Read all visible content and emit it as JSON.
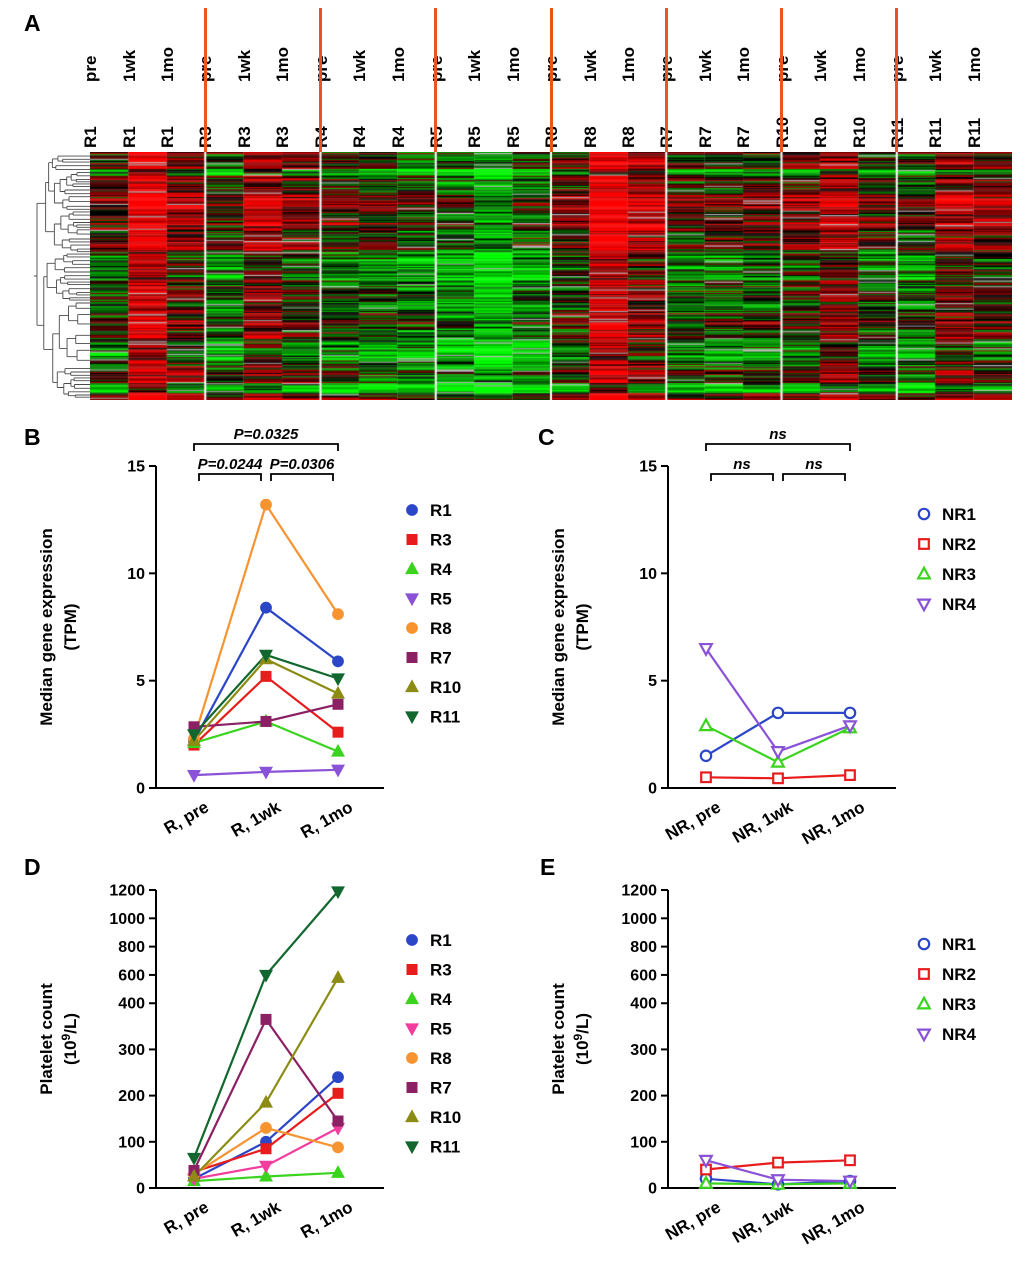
{
  "panels": {
    "a": "A",
    "b": "B",
    "c": "C",
    "d": "D",
    "e": "E"
  },
  "chart_data": [
    {
      "type": "heatmap",
      "panel": "A",
      "description": "Hierarchically clustered gene-expression heatmap (red=up, green=down, black=neutral, grey=missing) for responders R1,R3,R4,R5,R8,R7,R10,R11 at pre, 1wk, 1mo",
      "separator_color": "#e8561c",
      "up_color": "#ff0000",
      "down_color": "#00e400",
      "neutral_color": "#000000",
      "missing_color": "#9a9a9a",
      "columns": [
        {
          "sample": "R1",
          "timepoint": "pre",
          "bias": -0.12
        },
        {
          "sample": "R1",
          "timepoint": "1wk",
          "bias": 0.92
        },
        {
          "sample": "R1",
          "timepoint": "1mo",
          "bias": 0.25
        },
        {
          "sample": "R3",
          "timepoint": "pre",
          "bias": -0.25
        },
        {
          "sample": "R3",
          "timepoint": "1wk",
          "bias": 0.38
        },
        {
          "sample": "R3",
          "timepoint": "1mo",
          "bias": 0.05
        },
        {
          "sample": "R4",
          "timepoint": "pre",
          "bias": -0.18
        },
        {
          "sample": "R4",
          "timepoint": "1wk",
          "bias": -0.25
        },
        {
          "sample": "R4",
          "timepoint": "1mo",
          "bias": -0.38
        },
        {
          "sample": "R5",
          "timepoint": "pre",
          "bias": -0.5
        },
        {
          "sample": "R5",
          "timepoint": "1wk",
          "bias": -0.85
        },
        {
          "sample": "R5",
          "timepoint": "1mo",
          "bias": -0.45
        },
        {
          "sample": "R8",
          "timepoint": "pre",
          "bias": 0.0
        },
        {
          "sample": "R8",
          "timepoint": "1wk",
          "bias": 0.95
        },
        {
          "sample": "R8",
          "timepoint": "1mo",
          "bias": 0.5
        },
        {
          "sample": "R7",
          "timepoint": "pre",
          "bias": -0.12
        },
        {
          "sample": "R7",
          "timepoint": "1wk",
          "bias": -0.2
        },
        {
          "sample": "R7",
          "timepoint": "1mo",
          "bias": -0.05
        },
        {
          "sample": "R10",
          "timepoint": "pre",
          "bias": 0.05
        },
        {
          "sample": "R10",
          "timepoint": "1wk",
          "bias": 0.45
        },
        {
          "sample": "R10",
          "timepoint": "1mo",
          "bias": -0.15
        },
        {
          "sample": "R11",
          "timepoint": "pre",
          "bias": -0.28
        },
        {
          "sample": "R11",
          "timepoint": "1wk",
          "bias": 0.3
        },
        {
          "sample": "R11",
          "timepoint": "1mo",
          "bias": 0.12
        }
      ]
    },
    {
      "type": "line",
      "panel": "B",
      "categories": [
        "R, pre",
        "R, 1wk",
        "R, 1mo"
      ],
      "ylabel_lines": [
        "Median gene expression",
        "(TPM)"
      ],
      "ylim": [
        0,
        15
      ],
      "yticks": [
        0,
        5,
        10,
        15
      ],
      "series": [
        {
          "name": "R1",
          "color": "#2c46c8",
          "marker": "circle",
          "filled": true,
          "values": [
            2.2,
            8.4,
            5.9
          ]
        },
        {
          "name": "R3",
          "color": "#e81c1c",
          "marker": "square",
          "filled": true,
          "values": [
            2.0,
            5.2,
            2.6
          ]
        },
        {
          "name": "R4",
          "color": "#3ad41e",
          "marker": "triangle-up",
          "filled": true,
          "values": [
            2.1,
            3.1,
            1.7
          ]
        },
        {
          "name": "R5",
          "color": "#8a52d6",
          "marker": "triangle-down",
          "filled": true,
          "values": [
            0.6,
            0.75,
            0.85
          ]
        },
        {
          "name": "R8",
          "color": "#f79331",
          "marker": "circle",
          "filled": true,
          "values": [
            2.3,
            13.2,
            8.1
          ]
        },
        {
          "name": "R7",
          "color": "#8c2064",
          "marker": "square",
          "filled": true,
          "values": [
            2.85,
            3.1,
            3.9
          ]
        },
        {
          "name": "R10",
          "color": "#8c8c14",
          "marker": "triangle-up",
          "filled": true,
          "values": [
            2.2,
            6.0,
            4.4
          ]
        },
        {
          "name": "R11",
          "color": "#11672e",
          "marker": "triangle-down",
          "filled": true,
          "values": [
            2.5,
            6.2,
            5.1
          ]
        }
      ],
      "annotations": [
        {
          "label": "P=0.0325",
          "from": 0,
          "to": 2,
          "level": 2
        },
        {
          "label": "P=0.0244",
          "from": 0,
          "to": 1,
          "level": 1
        },
        {
          "label": "P=0.0306",
          "from": 1,
          "to": 2,
          "level": 1
        }
      ]
    },
    {
      "type": "line",
      "panel": "C",
      "categories": [
        "NR, pre",
        "NR, 1wk",
        "NR, 1mo"
      ],
      "ylabel_lines": [
        "Median gene expression",
        "(TPM)"
      ],
      "ylim": [
        0,
        15
      ],
      "yticks": [
        0,
        5,
        10,
        15
      ],
      "series": [
        {
          "name": "NR1",
          "color": "#2c46c8",
          "marker": "circle",
          "filled": false,
          "values": [
            1.5,
            3.5,
            3.5
          ]
        },
        {
          "name": "NR2",
          "color": "#e81c1c",
          "marker": "square",
          "filled": false,
          "values": [
            0.5,
            0.45,
            0.6
          ]
        },
        {
          "name": "NR3",
          "color": "#3ad41e",
          "marker": "triangle-up",
          "filled": false,
          "values": [
            2.9,
            1.2,
            2.8
          ]
        },
        {
          "name": "NR4",
          "color": "#8a52d6",
          "marker": "triangle-down",
          "filled": false,
          "values": [
            6.5,
            1.7,
            2.9
          ]
        }
      ],
      "annotations": [
        {
          "label": "ns",
          "from": 0,
          "to": 2,
          "level": 2
        },
        {
          "label": "ns",
          "from": 0,
          "to": 1,
          "level": 1
        },
        {
          "label": "ns",
          "from": 1,
          "to": 2,
          "level": 1
        }
      ]
    },
    {
      "type": "line",
      "panel": "D",
      "categories": [
        "R, pre",
        "R, 1wk",
        "R, 1mo"
      ],
      "ylabel_lines": [
        "Platelet count",
        {
          "pre": "(10",
          "sup": "9",
          "post": "/L)"
        }
      ],
      "yticks": [
        0,
        100,
        200,
        300,
        400,
        600,
        800,
        1000,
        1200
      ],
      "axis_break": {
        "at": 400,
        "max": 1200,
        "low_fraction": 0.62
      },
      "series": [
        {
          "name": "R1",
          "color": "#2c46c8",
          "marker": "circle",
          "filled": true,
          "values": [
            20,
            100,
            240
          ]
        },
        {
          "name": "R3",
          "color": "#e81c1c",
          "marker": "square",
          "filled": true,
          "values": [
            35,
            85,
            205
          ]
        },
        {
          "name": "R4",
          "color": "#3ad41e",
          "marker": "triangle-up",
          "filled": true,
          "values": [
            15,
            25,
            33
          ]
        },
        {
          "name": "R5",
          "color": "#f23c9e",
          "marker": "triangle-down",
          "filled": true,
          "values": [
            20,
            48,
            130
          ]
        },
        {
          "name": "R8",
          "color": "#f79331",
          "marker": "circle",
          "filled": true,
          "values": [
            30,
            130,
            88
          ]
        },
        {
          "name": "R7",
          "color": "#8c2064",
          "marker": "square",
          "filled": true,
          "values": [
            38,
            365,
            145
          ]
        },
        {
          "name": "R10",
          "color": "#8c8c14",
          "marker": "triangle-up",
          "filled": true,
          "values": [
            25,
            185,
            580
          ]
        },
        {
          "name": "R11",
          "color": "#11672e",
          "marker": "triangle-down",
          "filled": true,
          "values": [
            65,
            600,
            1190
          ]
        }
      ],
      "annotations": []
    },
    {
      "type": "line",
      "panel": "E",
      "categories": [
        "NR, pre",
        "NR, 1wk",
        "NR, 1mo"
      ],
      "ylabel_lines": [
        "Platelet count",
        {
          "pre": "(10",
          "sup": "9",
          "post": "/L)"
        }
      ],
      "yticks": [
        0,
        100,
        200,
        300,
        400,
        600,
        800,
        1000,
        1200
      ],
      "axis_break": {
        "at": 400,
        "max": 1200,
        "low_fraction": 0.62
      },
      "series": [
        {
          "name": "NR1",
          "color": "#2c46c8",
          "marker": "circle",
          "filled": false,
          "values": [
            20,
            8,
            15
          ]
        },
        {
          "name": "NR2",
          "color": "#e81c1c",
          "marker": "square",
          "filled": false,
          "values": [
            40,
            55,
            60
          ]
        },
        {
          "name": "NR3",
          "color": "#3ad41e",
          "marker": "triangle-up",
          "filled": false,
          "values": [
            10,
            8,
            10
          ]
        },
        {
          "name": "NR4",
          "color": "#8a52d6",
          "marker": "triangle-down",
          "filled": false,
          "values": [
            60,
            18,
            15
          ]
        }
      ],
      "annotations": []
    }
  ]
}
